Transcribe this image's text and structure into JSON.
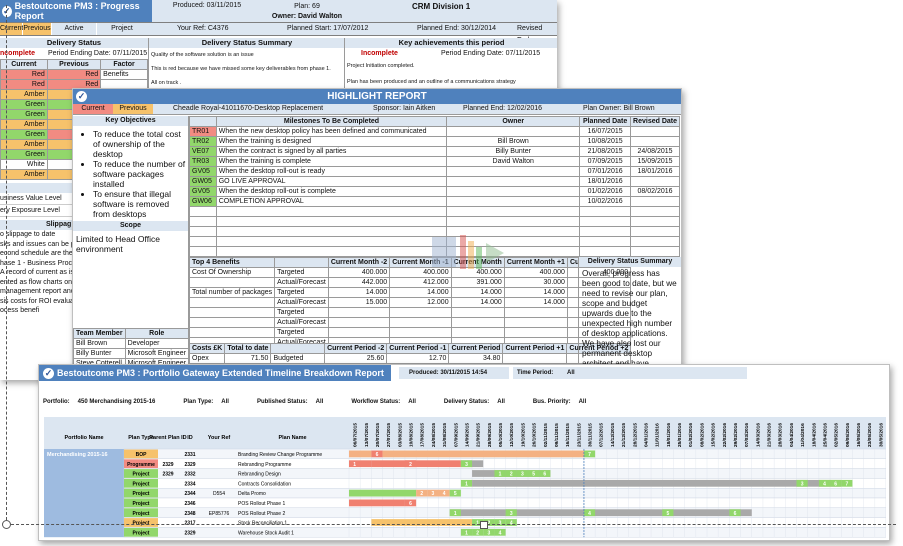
{
  "progress_report": {
    "brand_title": "Bestoutcome PM3 : Progress Report",
    "produced": "Produced: 03/11/2015",
    "plan": "Plan: 69",
    "owner": "Owner: David Walton",
    "division": "CRM Division 1",
    "tabs": [
      "Current",
      "Previous",
      "Active",
      "Project"
    ],
    "your_ref": "Your Ref: C4376",
    "planned_start": "Planned Start: 17/07/2012",
    "planned_end": "Planned End: 30/12/2014",
    "revised_end": "Revised End:",
    "delivery_status": "Delivery Status",
    "incomplete_left": "ncomplete",
    "period_ending": "Period Ending Date: 07/11/2015",
    "col_current": "Current",
    "col_previous": "Previous",
    "col_factor": "Factor",
    "rag_rows": [
      {
        "cur": "Red",
        "prev": "Red",
        "factor": "Benefits"
      },
      {
        "cur": "Red",
        "prev": "Red",
        "factor": ""
      },
      {
        "cur": "Amber",
        "prev": "Amber",
        "factor": ""
      },
      {
        "cur": "Green",
        "prev": "Green",
        "factor": ""
      },
      {
        "cur": "Green",
        "prev": "Amber",
        "factor": ""
      },
      {
        "cur": "Amber",
        "prev": "Amber",
        "factor": ""
      },
      {
        "cur": "Green",
        "prev": "Red",
        "factor": ""
      },
      {
        "cur": "Amber",
        "prev": "Amber",
        "factor": ""
      },
      {
        "cur": "Green",
        "prev": "Green",
        "factor": ""
      },
      {
        "cur": "White",
        "prev": "White",
        "factor": ""
      },
      {
        "cur": "Amber",
        "prev": "Amber",
        "factor": ""
      }
    ],
    "value_label": "Value &",
    "business_value": "usiness Value Level",
    "exposure": "ery Exposure Level",
    "slippage": "Slippag",
    "left_notes": [
      "o slippage to date",
      "sks and issues can be put h",
      "econd schedule are the follow",
      "hase 1 - Business Process Rev",
      "A record of current as is proc",
      "ented as flow charts on MS",
      "management report and pl",
      "sis costs for ROI evaluati",
      "ocess benefi"
    ],
    "delivery_summary_title": "Delivery Status Summary",
    "delivery_summary_lines": [
      "Quality of the software solution is an issue",
      "This is red because we have missed some key deliverables from phase 1.",
      "All on track ."
    ],
    "key_ach_title": "Key achievements this period",
    "key_ach_status": "Incomplete",
    "key_ach_period": "Period Ending Date: 07/11/2015",
    "key_ach_lines": [
      "Project Initiation completed.",
      "Plan has been produced and an outline of a communications strategy"
    ]
  },
  "highlight_report": {
    "title": "HIGHLIGHT REPORT",
    "tab_current": "Current",
    "tab_previous": "Previous",
    "project_name": "Cheadle Royal-41011670-Desktop Replacement",
    "sponsor": "Sponsor: Iain Aitken",
    "planned_end": "Planned End: 12/02/2016",
    "plan_owner": "Plan Owner: Bill Brown",
    "key_objectives_title": "Key Objectives",
    "objectives": [
      "To reduce the total cost of ownership of the desktop",
      "To reduce the number of software packages installed",
      "To ensure that illegal software is removed from desktops",
      "To ensure the asset regis"
    ],
    "milestones_title": "Milestones To Be Completed",
    "owner_title": "Owner",
    "planned_date_title": "Planned Date",
    "revised_date_title": "Revised Date",
    "milestones": [
      {
        "code": "TR01",
        "rag": "red",
        "text": "When the new desktop policy has been defined and communicated",
        "owner": "",
        "planned": "16/07/2015",
        "revised": ""
      },
      {
        "code": "TR02",
        "rag": "green",
        "text": "When the training is designed",
        "owner": "Bill Brown",
        "planned": "10/08/2015",
        "revised": ""
      },
      {
        "code": "VE07",
        "rag": "green",
        "text": "When the contract is signed by all parties",
        "owner": "Billy Bunter",
        "planned": "21/08/2015",
        "revised": "24/08/2015"
      },
      {
        "code": "TR03",
        "rag": "green",
        "text": "When the training is complete",
        "owner": "David Walton",
        "planned": "07/09/2015",
        "revised": "15/09/2015"
      },
      {
        "code": "GV05",
        "rag": "green",
        "text": "When the desktop roll-out is ready",
        "owner": "",
        "planned": "07/01/2016",
        "revised": "18/01/2016"
      },
      {
        "code": "GW05",
        "rag": "green",
        "text": "GO LIVE APPROVAL",
        "owner": "",
        "planned": "18/01/2016",
        "revised": ""
      },
      {
        "code": "GV05",
        "rag": "green",
        "text": "When the desktop roll-out is complete",
        "owner": "",
        "planned": "01/02/2016",
        "revised": "08/02/2016"
      },
      {
        "code": "GW06",
        "rag": "green",
        "text": "COMPLETION APPROVAL",
        "owner": "",
        "planned": "10/02/2016",
        "revised": ""
      }
    ],
    "scope_title": "Scope",
    "scope_text": "Limited to Head Office environment",
    "top4_title": "Top 4 Benefits",
    "month_headers": [
      "Current Month -2",
      "Current Month -1",
      "Current Month",
      "Current Month +1",
      "Current Month +2"
    ],
    "benefits": [
      {
        "name": "Cost Of Ownership",
        "type": "Targeted",
        "vals": [
          "400.000",
          "400.000",
          "400.000",
          "400.000",
          "400.000"
        ]
      },
      {
        "name": "",
        "type": "Actual/Forecast",
        "vals": [
          "442.000",
          "412.000",
          "391.000",
          "30.000",
          ""
        ]
      },
      {
        "name": "Total number of packages",
        "type": "Targeted",
        "vals": [
          "14.000",
          "14.000",
          "14.000",
          "14.000",
          ""
        ]
      },
      {
        "name": "",
        "type": "Actual/Forecast",
        "vals": [
          "15.000",
          "12.000",
          "14.000",
          "14.000",
          ""
        ]
      },
      {
        "name": "",
        "type": "Targeted",
        "vals": [
          "",
          "",
          "",
          "",
          ""
        ]
      },
      {
        "name": "",
        "type": "Actual/Forecast",
        "vals": [
          "",
          "",
          "",
          "",
          ""
        ]
      },
      {
        "name": "",
        "type": "Targeted",
        "vals": [
          "",
          "",
          "",
          "",
          ""
        ]
      },
      {
        "name": "",
        "type": "Actual/Forecast",
        "vals": [
          "",
          "",
          "",
          "",
          ""
        ]
      }
    ],
    "team_member_title": "Team Member",
    "role_title": "Role",
    "team": [
      {
        "name": "Bill Brown",
        "role": "Developer"
      },
      {
        "name": "Billy Bunter",
        "role": "Microsoft Engineer"
      },
      {
        "name": "Steve Cotterell",
        "role": "Microsoft Engineer"
      }
    ],
    "costs_title": "Costs £K",
    "total_to_date": "Total to date",
    "period_headers": [
      "Current Period -2",
      "Current Period -1",
      "Current Period",
      "Current Period +1",
      "Current Period +2"
    ],
    "cost_row": {
      "name": "Opex",
      "total": "71.50",
      "type": "Budgeted",
      "vals": [
        "25.60",
        "12.70",
        "34.80",
        "",
        ""
      ]
    },
    "cost_row2_type": "Actual/Forecast",
    "delivery_summary_title": "Delivery Status Summary",
    "delivery_summary_text": "Overall, progress has been good to date, but we need to revise our plan, scope and budget upwards due to the unexpected high number of desktop applications. We have also lost our permanent desktop architect and have replaced him with a contractor."
  },
  "portfolio_report": {
    "title": "Bestoutcome PM3 : Portfolio Gateway Extended Timeline Breakdown Report",
    "produced": "Produced: 30/11/2015 14:54",
    "time_period": "Time Period:",
    "time_period_val": "All",
    "filters": [
      {
        "label": "Portfolio:",
        "value": "450 Merchandising 2015-16"
      },
      {
        "label": "Plan Type:",
        "value": "All"
      },
      {
        "label": "Published Status:",
        "value": "All"
      },
      {
        "label": "Workflow Status:",
        "value": "All"
      },
      {
        "label": "Delivery Status:",
        "value": "All"
      },
      {
        "label": "Bus. Priority:",
        "value": "All"
      }
    ],
    "columns": [
      "Portfolio Name",
      "Plan Type",
      "Parent Plan ID",
      "ID",
      "Your Ref",
      "Plan Name"
    ],
    "portfolio_name": "Merchandising 2015-16",
    "dates": [
      "06/07/2015",
      "13/07/2015",
      "20/07/2015",
      "27/07/2015",
      "03/08/2015",
      "10/08/2015",
      "17/08/2015",
      "24/08/2015",
      "31/08/2015",
      "07/09/2015",
      "14/09/2015",
      "21/09/2015",
      "28/09/2015",
      "05/10/2015",
      "12/10/2015",
      "19/10/2015",
      "26/10/2015",
      "02/11/2015",
      "09/11/2015",
      "16/11/2015",
      "23/11/2015",
      "30/11/2015",
      "07/12/2015",
      "14/12/2015",
      "21/12/2015",
      "28/12/2015",
      "04/01/2016",
      "11/01/2016",
      "18/01/2016",
      "25/01/2016",
      "01/02/2016",
      "08/02/2016",
      "15/02/2016",
      "22/02/2016",
      "29/02/2016",
      "07/03/2016",
      "14/03/2016",
      "21/03/2016",
      "28/03/2016",
      "04/04/2016",
      "11/04/2016",
      "18/04/2016",
      "25/04/2016",
      "02/05/2016",
      "09/05/2016",
      "16/05/2016",
      "23/05/2016",
      "30/05/2016"
    ],
    "rows": [
      {
        "type": "BOP",
        "type_color": "amber",
        "parent": "",
        "id": "2331",
        "ref": "",
        "name": "Branding Review Change Programme",
        "bars": [
          {
            "s": 0,
            "e": 2,
            "c": "#f4b183"
          },
          {
            "s": 2,
            "e": 3,
            "c": "#f08070",
            "t": "6"
          },
          {
            "s": 3,
            "e": 21,
            "c": "#f4b183"
          },
          {
            "s": 21,
            "e": 22,
            "c": "#92d76b",
            "t": "7"
          }
        ]
      },
      {
        "type": "Programme",
        "type_color": "red",
        "parent": "2329",
        "id": "2329",
        "ref": "",
        "name": "Rebranding Programme",
        "bars": [
          {
            "s": 0,
            "e": 2,
            "c": "#f08070",
            "t": "1"
          },
          {
            "s": 2,
            "e": 10,
            "c": "#f08070"
          },
          {
            "s": 5,
            "e": 6,
            "c": "#f08070",
            "t": "2"
          },
          {
            "s": 10,
            "e": 12,
            "c": "#a9a9a9"
          },
          {
            "s": 10,
            "e": 11,
            "c": "#92d76b",
            "t": "3"
          }
        ]
      },
      {
        "type": "Project",
        "type_color": "green",
        "parent": "2329",
        "id": "2332",
        "ref": "",
        "name": "Rebranding Design",
        "bars": [
          {
            "s": 11,
            "e": 18,
            "c": "#a9a9a9"
          },
          {
            "s": 13,
            "e": 14,
            "c": "#92d76b",
            "t": "1"
          },
          {
            "s": 14,
            "e": 15,
            "c": "#92d76b",
            "t": "2"
          },
          {
            "s": 15,
            "e": 16,
            "c": "#92d76b",
            "t": "3"
          },
          {
            "s": 16,
            "e": 17,
            "c": "#92d76b",
            "t": "5"
          },
          {
            "s": 17,
            "e": 18,
            "c": "#92d76b",
            "t": "6"
          }
        ]
      },
      {
        "type": "Project",
        "type_color": "green",
        "parent": "",
        "id": "2334",
        "ref": "",
        "name": "Contracts Consolidation",
        "bars": [
          {
            "s": 10,
            "e": 11,
            "c": "#92d76b",
            "t": "1"
          },
          {
            "s": 11,
            "e": 44,
            "c": "#a9a9a9"
          },
          {
            "s": 40,
            "e": 41,
            "c": "#92d76b",
            "t": "3"
          },
          {
            "s": 42,
            "e": 43,
            "c": "#92d76b",
            "t": "4"
          },
          {
            "s": 43,
            "e": 44,
            "c": "#92d76b",
            "t": "6"
          },
          {
            "s": 44,
            "e": 45,
            "c": "#92d76b",
            "t": "7"
          }
        ]
      },
      {
        "type": "Project",
        "type_color": "green",
        "parent": "",
        "id": "2344",
        "ref": "D554",
        "name": "Delta Promo",
        "bars": [
          {
            "s": 0,
            "e": 6,
            "c": "#92d76b"
          },
          {
            "s": 6,
            "e": 7,
            "c": "#f4b183",
            "t": "2"
          },
          {
            "s": 7,
            "e": 8,
            "c": "#f4b183",
            "t": "3"
          },
          {
            "s": 8,
            "e": 9,
            "c": "#f4b183",
            "t": "4"
          },
          {
            "s": 9,
            "e": 10,
            "c": "#92d76b",
            "t": "5"
          }
        ]
      },
      {
        "type": "Project",
        "type_color": "green",
        "parent": "",
        "id": "2346",
        "ref": "",
        "name": "POS Rollout Phase 1",
        "bars": [
          {
            "s": 0,
            "e": 5,
            "c": "#f08070"
          },
          {
            "s": 5,
            "e": 6,
            "c": "#f08070",
            "t": "6"
          }
        ]
      },
      {
        "type": "Project",
        "type_color": "green",
        "parent": "",
        "id": "2348",
        "ref": "EP85776",
        "name": "POS Rollout Phase 2",
        "bars": [
          {
            "s": 9,
            "e": 36,
            "c": "#a9a9a9"
          },
          {
            "s": 9,
            "e": 10,
            "c": "#92d76b",
            "t": "1"
          },
          {
            "s": 14,
            "e": 15,
            "c": "#92d76b",
            "t": "3"
          },
          {
            "s": 21,
            "e": 22,
            "c": "#92d76b",
            "t": "4"
          },
          {
            "s": 28,
            "e": 29,
            "c": "#92d76b",
            "t": "5"
          },
          {
            "s": 34,
            "e": 35,
            "c": "#92d76b",
            "t": "6"
          }
        ]
      },
      {
        "type": "Project",
        "type_color": "amber",
        "parent": "",
        "id": "2317",
        "ref": "",
        "name": "Stock Reconciliation 1",
        "bars": [
          {
            "s": 2,
            "e": 11,
            "c": "#f6c26b"
          },
          {
            "s": 11,
            "e": 12,
            "c": "#92d76b",
            "t": "1"
          },
          {
            "s": 12,
            "e": 13,
            "c": "#92d76b",
            "t": "2"
          },
          {
            "s": 13,
            "e": 14,
            "c": "#92d76b",
            "t": "3"
          },
          {
            "s": 14,
            "e": 15,
            "c": "#92d76b",
            "t": "4"
          }
        ]
      },
      {
        "type": "Project",
        "type_color": "green",
        "parent": "",
        "id": "2329",
        "ref": "",
        "name": "Warehouse Stock Audit 1",
        "bars": [
          {
            "s": 10,
            "e": 11,
            "c": "#92d76b",
            "t": "1"
          },
          {
            "s": 11,
            "e": 12,
            "c": "#92d76b",
            "t": "2"
          },
          {
            "s": 12,
            "e": 13,
            "c": "#92d76b",
            "t": "3"
          },
          {
            "s": 13,
            "e": 14,
            "c": "#92d76b",
            "t": "4"
          }
        ]
      }
    ]
  },
  "colors": {
    "brand_blue": "#4f81bd",
    "header_blue": "#dce6f1",
    "red": "#f28b82",
    "amber": "#f6c26b",
    "green": "#92d76b"
  }
}
